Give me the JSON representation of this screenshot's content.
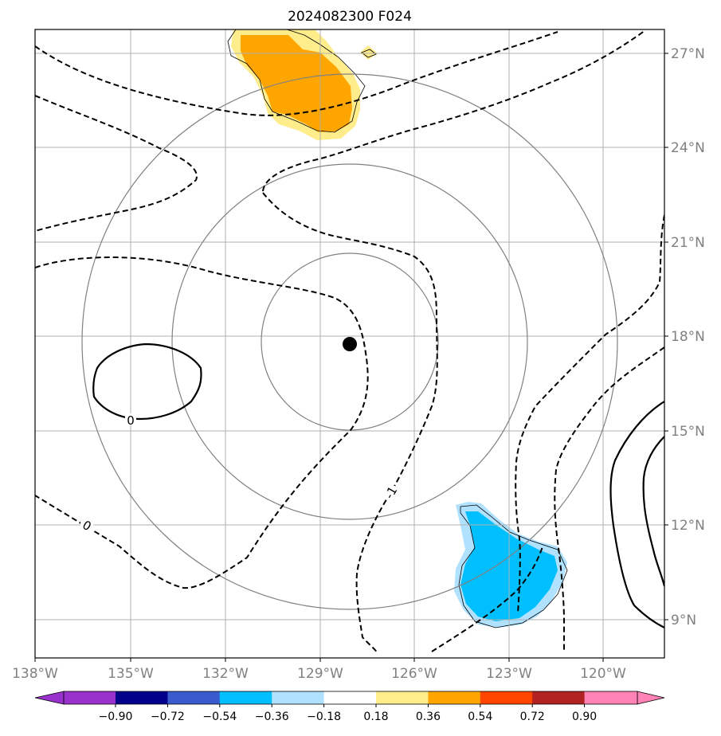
{
  "title": "2024082300 F024",
  "map": {
    "projection": "lat-lon",
    "lon_range": [
      -138.0,
      -117.8
    ],
    "lat_range": [
      7.8,
      27.8
    ],
    "center_marker": {
      "lon": -128.0,
      "lat": 17.8
    },
    "range_rings_deg": [
      3,
      6,
      9
    ],
    "lat_ticks": [
      "9°N",
      "12°N",
      "15°N",
      "18°N",
      "21°N",
      "24°N",
      "27°N"
    ],
    "lon_ticks": [
      "138°W",
      "135°W",
      "132°W",
      "129°W",
      "126°W",
      "123°W",
      "120°W"
    ],
    "contour_labels": [
      "0",
      "0",
      "-1"
    ]
  },
  "colorbar": {
    "labels": [
      "−0.90",
      "−0.72",
      "−0.54",
      "−0.36",
      "−0.18",
      "0.18",
      "0.36",
      "0.54",
      "0.72",
      "0.90"
    ],
    "colors": [
      "#9932CC",
      "#00008B",
      "#3A5BCD",
      "#00BFFF",
      "#B0E2FF",
      "#FFFFFF",
      "#FFEC8B",
      "#FFA500",
      "#FF4500",
      "#B22222",
      "#FF83B4"
    ]
  },
  "colors": {
    "grid": "#b0b0b0",
    "rings": "#808080",
    "positive_light": "#FFEC8B",
    "positive_mid": "#FFA500",
    "negative_light": "#B0E2FF",
    "negative_mid": "#00BFFF",
    "tick_text": "#808080"
  }
}
